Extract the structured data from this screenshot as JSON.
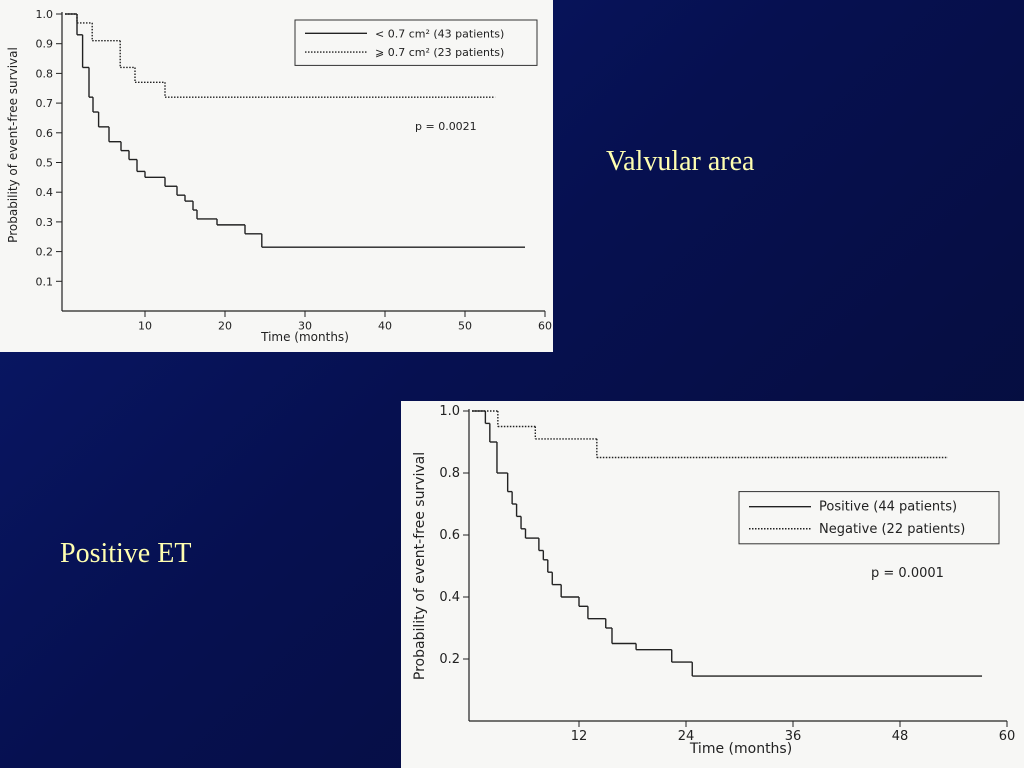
{
  "slide": {
    "labels": [
      "Valvular area",
      "Positive ET"
    ]
  },
  "chart_data": [
    {
      "type": "line",
      "step": "post",
      "xlabel": "Time (months)",
      "ylabel": "Probability of event-free survival",
      "xlim": [
        0,
        60
      ],
      "ylim": [
        0,
        1
      ],
      "xticks": [
        10,
        20,
        30,
        40,
        50,
        60
      ],
      "yticks": [
        0.1,
        0.2,
        0.3,
        0.4,
        0.5,
        0.6,
        0.7,
        0.8,
        0.9,
        {
          "value": 1,
          "label": "1.0"
        }
      ],
      "legend": "upper right",
      "annotation": "p = 0.0021",
      "series": [
        {
          "name": "< 0.7 cm² (43 patients)",
          "color": "#222222",
          "dash": "solid",
          "x": [
            0,
            1.5,
            2.2,
            3,
            3.5,
            4.2,
            5.5,
            7,
            8,
            9,
            10,
            12.5,
            14,
            15,
            16,
            16.5,
            19,
            22.5,
            24.6,
            57.5
          ],
          "values": [
            1,
            0.93,
            0.82,
            0.72,
            0.67,
            0.62,
            0.57,
            0.54,
            0.51,
            0.47,
            0.45,
            0.42,
            0.39,
            0.37,
            0.34,
            0.31,
            0.29,
            0.26,
            0.215,
            0.215
          ]
        },
        {
          "name": "⩾ 0.7 cm² (23 patients)",
          "color": "#222222",
          "dash": "dotted",
          "x": [
            0,
            1.5,
            3.4,
            6.9,
            8.75,
            12.5,
            53.75
          ],
          "values": [
            1,
            0.97,
            0.91,
            0.82,
            0.77,
            0.72,
            0.72
          ]
        }
      ]
    },
    {
      "type": "line",
      "step": "post",
      "xlabel": "Time (months)",
      "ylabel": "Probability of event-free survival",
      "xlim": [
        0,
        60
      ],
      "ylim": [
        0,
        1
      ],
      "xticks": [
        12,
        24,
        36,
        48,
        60
      ],
      "yticks": [
        0.2,
        0.4,
        0.6,
        0.8,
        {
          "value": 1,
          "label": "1.0"
        }
      ],
      "legend": "center right",
      "annotation": "p = 0.0001",
      "series": [
        {
          "name": "Positive (44 patients)",
          "color": "#222222",
          "dash": "solid",
          "x": [
            0,
            1.5,
            2,
            2.8,
            4,
            4.5,
            5,
            5.5,
            6,
            7.5,
            8,
            8.5,
            9,
            10,
            12,
            13,
            15,
            15.7,
            18.4,
            22.4,
            24.7,
            57.2
          ],
          "values": [
            1,
            0.96,
            0.9,
            0.8,
            0.74,
            0.7,
            0.66,
            0.62,
            0.59,
            0.55,
            0.52,
            0.48,
            0.44,
            0.4,
            0.37,
            0.33,
            0.3,
            0.25,
            0.23,
            0.19,
            0.145,
            0.145
          ]
        },
        {
          "name": "Negative (22 patients)",
          "color": "#222222",
          "dash": "dotted",
          "x": [
            0,
            2.9,
            7.1,
            14,
            53.3
          ],
          "values": [
            1,
            0.95,
            0.91,
            0.85,
            0.85
          ]
        }
      ]
    }
  ]
}
